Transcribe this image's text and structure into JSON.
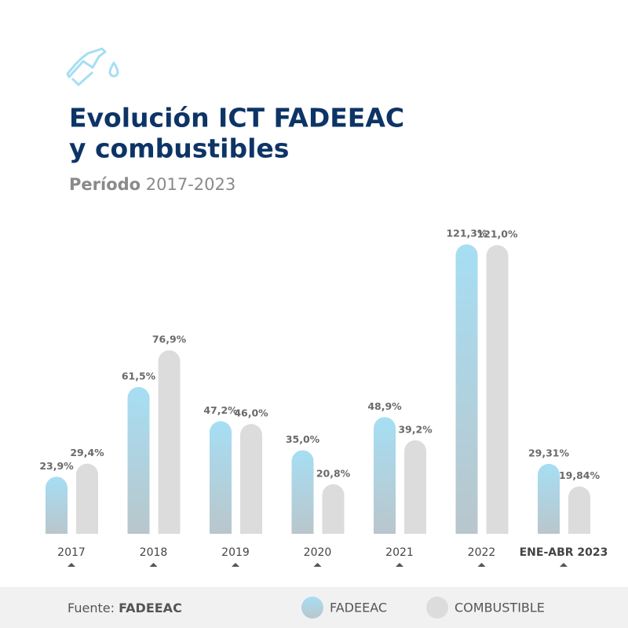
{
  "chart_data": {
    "type": "bar",
    "title": [
      "Evolución ICT FADEEAC",
      "y combustibles"
    ],
    "subtitle": {
      "label": "Período",
      "text": "2017-2023"
    },
    "source": {
      "label": "Fuente:",
      "text": "FADEEAC"
    },
    "categories": [
      "2017",
      "2018",
      "2019",
      "2020",
      "2021",
      "2022",
      "ENE-ABR 2023"
    ],
    "series": [
      {
        "name": "FADEEAC",
        "color": "#a6def3",
        "values": [
          23.9,
          61.5,
          47.2,
          35.0,
          48.9,
          121.3,
          29.31
        ],
        "value_labels": [
          "23,9%",
          "61,5%",
          "47,2%",
          "35,0%",
          "48,9%",
          "121,3%",
          "29,31%"
        ]
      },
      {
        "name": "COMBUSTIBLE",
        "color": "#dcdcdc",
        "values": [
          29.4,
          76.9,
          46.0,
          20.8,
          39.2,
          121.0,
          19.84
        ],
        "value_labels": [
          "29,4%",
          "76,9%",
          "46,0%",
          "20,8%",
          "39,2%",
          "121,0%",
          "19,84%"
        ]
      }
    ],
    "ylim": [
      0,
      125
    ]
  }
}
